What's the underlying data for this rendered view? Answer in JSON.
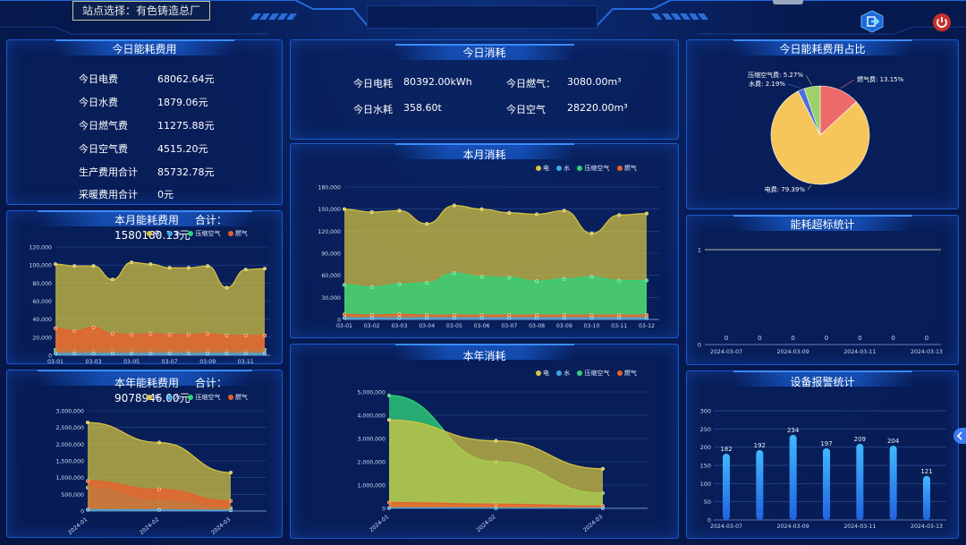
{
  "header": {
    "site_selector": "站点选择：有色铸造总厂"
  },
  "colors": {
    "electric": "#d8c640",
    "water": "#3fa8e6",
    "compressed_air": "#2fd47a",
    "gas": "#e8602e",
    "panel_border": "#1a5ad0"
  },
  "icons": [
    "exit-icon",
    "power-icon",
    "collapse-arrow-icon"
  ],
  "today_cost": {
    "title": "今日能耗费用",
    "items": [
      {
        "label": "今日电费",
        "value": "68062.64元"
      },
      {
        "label": "今日水费",
        "value": "1879.06元"
      },
      {
        "label": "今日燃气费",
        "value": "11275.88元"
      },
      {
        "label": "今日空气费",
        "value": "4515.20元"
      },
      {
        "label": "生产费用合计",
        "value": "85732.78元"
      },
      {
        "label": "采暖费用合计",
        "value": "0元"
      }
    ]
  },
  "today_consume": {
    "title": "今日消耗",
    "items": [
      {
        "label": "今日电耗",
        "value": "80392.00kWh"
      },
      {
        "label": "今日燃气：",
        "value": "3080.00m³"
      },
      {
        "label": "今日水耗",
        "value": "358.60t"
      },
      {
        "label": "今日空气",
        "value": "28220.00m³"
      }
    ]
  },
  "legend": {
    "electric": "电",
    "water": "水",
    "compressed_air": "压缩空气",
    "gas": "燃气"
  },
  "month_cost": {
    "title": "本月能耗费用",
    "total": "合计：1580180.13元"
  },
  "year_cost": {
    "title": "本年能耗费用",
    "total": "合计：9078946.00元"
  },
  "month_consume": {
    "title": "本月消耗"
  },
  "year_consume": {
    "title": "本年消耗"
  },
  "cost_share": {
    "title": "今日能耗费用占比"
  },
  "overlimit": {
    "title": "能耗超标统计"
  },
  "alarm": {
    "title": "设备报警统计"
  },
  "chart_data": [
    {
      "id": "month_cost",
      "type": "area",
      "categories": [
        "03-01",
        "03-02",
        "03-03",
        "03-04",
        "03-05",
        "03-06",
        "03-07",
        "03-08",
        "03-09",
        "03-10",
        "03-11",
        "03-12"
      ],
      "x_tick_labels": [
        "03-01",
        "03-03",
        "03-05",
        "03-07",
        "03-09",
        "03-11"
      ],
      "ylim": [
        0,
        120000
      ],
      "y_ticks": [
        "0",
        "20,000",
        "40,000",
        "60,000",
        "80,000",
        "100,000",
        "120,000"
      ],
      "series": [
        {
          "name": "电",
          "values": [
            101000,
            99000,
            99000,
            84000,
            103000,
            101000,
            97000,
            97000,
            99000,
            75000,
            95000,
            96000
          ]
        },
        {
          "name": "水",
          "values": [
            2000,
            2000,
            2000,
            2000,
            2000,
            2000,
            2000,
            2000,
            2000,
            2000,
            2000,
            2000
          ]
        },
        {
          "name": "压缩空气",
          "values": [
            6000,
            6000,
            6000,
            7000,
            7000,
            7000,
            6000,
            6000,
            6000,
            6000,
            6000,
            6000
          ]
        },
        {
          "name": "燃气",
          "values": [
            30000,
            27000,
            31000,
            24000,
            23000,
            24000,
            23000,
            23000,
            24000,
            22000,
            22000,
            22000
          ]
        }
      ]
    },
    {
      "id": "month_consume",
      "type": "area",
      "categories": [
        "03-01",
        "03-02",
        "03-03",
        "03-04",
        "03-05",
        "03-06",
        "03-07",
        "03-08",
        "03-09",
        "03-10",
        "03-11",
        "03-12"
      ],
      "ylim": [
        0,
        180000
      ],
      "y_ticks": [
        "0",
        "30,000",
        "60,000",
        "90,000",
        "120,000",
        "150,000",
        "180,000"
      ],
      "series": [
        {
          "name": "电",
          "values": [
            150000,
            146000,
            148000,
            130000,
            155000,
            150000,
            145000,
            143000,
            148000,
            117000,
            142000,
            144000
          ]
        },
        {
          "name": "水",
          "values": [
            2000,
            2000,
            2000,
            2000,
            2000,
            2000,
            2000,
            2000,
            2000,
            2000,
            2000,
            2000
          ]
        },
        {
          "name": "压缩空气",
          "values": [
            47000,
            44000,
            48000,
            50000,
            63000,
            58000,
            57000,
            52000,
            55000,
            58000,
            53000,
            53000
          ]
        },
        {
          "name": "燃气",
          "values": [
            7000,
            6000,
            7000,
            6000,
            6000,
            6000,
            6000,
            6000,
            6000,
            6000,
            6000,
            6000
          ]
        }
      ]
    },
    {
      "id": "year_cost",
      "type": "area",
      "categories": [
        "2024-01",
        "2024-02",
        "2024-03"
      ],
      "ylim": [
        0,
        3000000
      ],
      "y_ticks": [
        "0",
        "500,000",
        "1,000,000",
        "1,500,000",
        "2,000,000",
        "2,500,000",
        "3,000,000"
      ],
      "series": [
        {
          "name": "电",
          "values": [
            2650000,
            2050000,
            1150000
          ]
        },
        {
          "name": "水",
          "values": [
            40000,
            35000,
            20000
          ]
        },
        {
          "name": "压缩空气",
          "values": [
            700000,
            300000,
            90000
          ]
        },
        {
          "name": "燃气",
          "values": [
            900000,
            650000,
            300000
          ]
        }
      ]
    },
    {
      "id": "year_consume",
      "type": "area",
      "categories": [
        "2024-01",
        "2024-02",
        "2024-03"
      ],
      "ylim": [
        0,
        5000000
      ],
      "y_ticks": [
        "0",
        "1,000,000",
        "2,000,000",
        "3,000,000",
        "4,000,000",
        "5,000,000"
      ],
      "series": [
        {
          "name": "电",
          "values": [
            3800000,
            2900000,
            1700000
          ]
        },
        {
          "name": "水",
          "values": [
            10000,
            8000,
            6000
          ]
        },
        {
          "name": "压缩空气",
          "values": [
            4850000,
            2000000,
            650000
          ]
        },
        {
          "name": "燃气",
          "values": [
            250000,
            180000,
            100000
          ]
        }
      ]
    },
    {
      "id": "cost_share",
      "type": "pie",
      "slices": [
        {
          "label": "电费",
          "value": 79.39,
          "text": "电费: 79.39%",
          "color": "#f7c65a"
        },
        {
          "label": "燃气费",
          "value": 13.15,
          "text": "燃气费: 13.15%",
          "color": "#ec6a6a"
        },
        {
          "label": "压缩空气费",
          "value": 5.27,
          "text": "压缩空气费: 5.27%",
          "color": "#9fd06a"
        },
        {
          "label": "水费",
          "value": 2.19,
          "text": "水费: 2.19%",
          "color": "#4a6fd8"
        }
      ]
    },
    {
      "id": "overlimit",
      "type": "line",
      "categories": [
        "2024-03-07",
        "2024-03-08",
        "2024-03-09",
        "2024-03-10",
        "2024-03-11",
        "2024-03-12",
        "2024-03-13"
      ],
      "x_tick_labels": [
        "2024-03-07",
        "2024-03-09",
        "2024-03-11",
        "2024-03-13"
      ],
      "values": [
        0,
        0,
        0,
        0,
        0,
        0,
        0
      ],
      "ylim": [
        0,
        1
      ],
      "y_ticks": [
        "0",
        "1"
      ]
    },
    {
      "id": "alarm",
      "type": "bar",
      "categories": [
        "2024-03-07",
        "2024-03-08",
        "2024-03-09",
        "2024-03-10",
        "2024-03-11",
        "2024-03-12",
        "2024-03-13"
      ],
      "x_tick_labels": [
        "2024-03-07",
        "2024-03-09",
        "2024-03-11",
        "2024-03-13"
      ],
      "values": [
        182,
        192,
        234,
        197,
        209,
        204,
        121
      ],
      "ylim": [
        0,
        300
      ],
      "y_ticks": [
        "0",
        "50",
        "100",
        "150",
        "200",
        "250",
        "300"
      ]
    }
  ]
}
